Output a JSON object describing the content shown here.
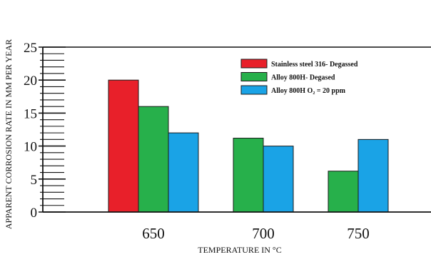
{
  "chart_data": {
    "type": "bar",
    "categories": [
      "650",
      "700",
      "750"
    ],
    "series": [
      {
        "name": "Stainless steel 316- Degassed",
        "color": "#e8202a",
        "values": [
          20,
          null,
          null
        ]
      },
      {
        "name": "Alloy 800H- Degased",
        "color": "#27b04b",
        "values": [
          16,
          11.2,
          6.2
        ]
      },
      {
        "name": "Alloy 800H O₂ = 20 ppm",
        "color": "#1aa3e6",
        "values": [
          12,
          10,
          11
        ]
      }
    ],
    "xlabel": "TEMPERATURE IN °C",
    "ylabel": "APPARENT CORROSION RATE IN MM PER YEAR",
    "ylim": [
      0,
      25
    ],
    "yticks": [
      0,
      5,
      10,
      15,
      20,
      25
    ],
    "grid": false,
    "legend": "top-right"
  }
}
